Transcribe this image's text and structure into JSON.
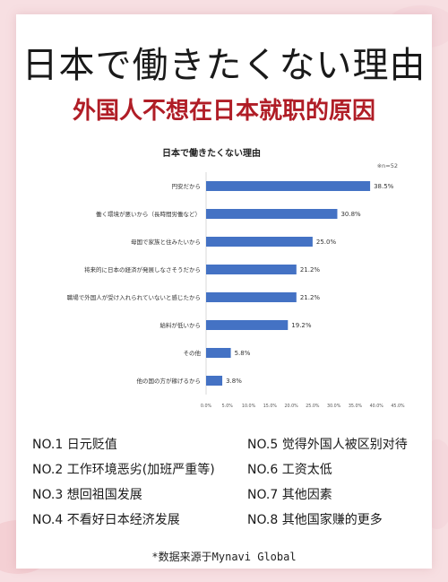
{
  "header": {
    "title_jp": "日本で働きたくない理由",
    "title_cn": "外国人不想在日本就职的原因"
  },
  "chart_data": {
    "type": "bar",
    "orientation": "horizontal",
    "title": "日本で働きたくない理由",
    "note": "※n=52",
    "categories": [
      "円安だから",
      "働く環境が悪いから（長時間労働など）",
      "母国で家族と住みたいから",
      "将来的に日本の経済が発展しなさそうだから",
      "職場で外国人が受け入れられていないと感じたから",
      "給料が低いから",
      "その他",
      "他の国の方が稼げるから"
    ],
    "values": [
      38.5,
      30.8,
      25.0,
      21.2,
      21.2,
      19.2,
      5.8,
      3.8
    ],
    "value_labels": [
      "38.5%",
      "30.8%",
      "25.0%",
      "21.2%",
      "21.2%",
      "19.2%",
      "5.8%",
      "3.8%"
    ],
    "xlim": [
      0,
      45
    ],
    "xticks": [
      "0.0%",
      "5.0%",
      "10.0%",
      "15.0%",
      "20.0%",
      "25.0%",
      "30.0%",
      "35.0%",
      "40.0%",
      "45.0%"
    ],
    "bar_color": "#4472c4",
    "grid": false
  },
  "reasons": [
    "NO.1 日元贬值",
    "NO.2 工作环境恶劣(加班严重等)",
    "NO.3 想回祖国发展",
    "NO.4 不看好日本经济发展",
    "NO.5 觉得外国人被区别对待",
    "NO.6 工资太低",
    "NO.7 其他因素",
    "NO.8 其他国家赚的更多"
  ],
  "source": "*数据来源于Mynavi Global",
  "colors": {
    "accent": "#b01d26",
    "background": "#f7dfe2"
  }
}
